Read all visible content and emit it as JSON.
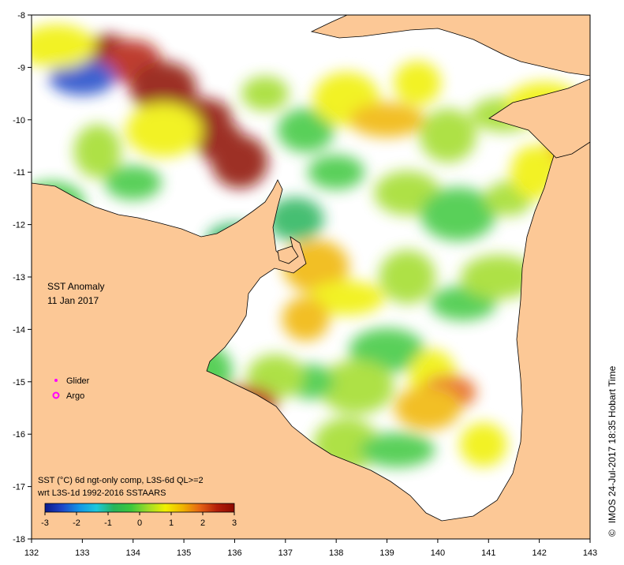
{
  "map": {
    "title_line1": "SST Anomaly",
    "title_line2": "11 Jan 2017",
    "x_ticks": [
      "132",
      "133",
      "134",
      "135",
      "136",
      "137",
      "138",
      "139",
      "140",
      "141",
      "142",
      "143"
    ],
    "y_ticks": [
      "-8",
      "-9",
      "-10",
      "-11",
      "-12",
      "-13",
      "-14",
      "-15",
      "-16",
      "-17",
      "-18"
    ],
    "lon_range": [
      132,
      143
    ],
    "lat_range": [
      -18,
      -8
    ],
    "land_color": "#fcc896",
    "ocean_color": "#ffffff"
  },
  "legend": {
    "glider_label": "Glider",
    "argo_label": "Argo",
    "marker_color": "#ff00ff"
  },
  "caption": {
    "line1": "SST (°C) 6d ngt-only comp, L3S-6d QL>=2",
    "line2": "wrt L3S-1d 1992-2016 SSTAARS"
  },
  "colorbar": {
    "ticks": [
      "-3",
      "-2",
      "-1",
      "0",
      "1",
      "2",
      "3"
    ],
    "range": [
      -3,
      3
    ],
    "colors": [
      "#0a1a8c",
      "#1e46c8",
      "#1496e6",
      "#1ec8dc",
      "#28b45a",
      "#3cc83c",
      "#a0dc28",
      "#f0f000",
      "#f0b400",
      "#e66414",
      "#b41e0a",
      "#8c0a00"
    ]
  },
  "credit": "IMOS 24-Jul-2017 18:35 Hobart Time",
  "copyright": "©",
  "sst_patches": [
    {
      "lon": 133.5,
      "lat": -8.7,
      "v": 2.5
    },
    {
      "lon": 134.0,
      "lat": -8.9,
      "v": 2.2
    },
    {
      "lon": 134.6,
      "lat": -9.4,
      "v": 2.6
    },
    {
      "lon": 135.2,
      "lat": -9.9,
      "v": 2.8
    },
    {
      "lon": 135.7,
      "lat": -10.4,
      "v": 2.9
    },
    {
      "lon": 136.1,
      "lat": -10.8,
      "v": 2.7
    },
    {
      "lon": 133.0,
      "lat": -9.2,
      "v": -2.5
    },
    {
      "lon": 132.5,
      "lat": -8.6,
      "v": 0.5
    },
    {
      "lon": 133.3,
      "lat": -10.6,
      "v": 0.2
    },
    {
      "lon": 134.0,
      "lat": -11.2,
      "v": -0.3
    },
    {
      "lon": 132.4,
      "lat": -11.6,
      "v": -0.5
    },
    {
      "lon": 134.6,
      "lat": -10.2,
      "v": 0.8
    },
    {
      "lon": 136.6,
      "lat": -9.5,
      "v": 0.3
    },
    {
      "lon": 137.4,
      "lat": -10.2,
      "v": -0.2
    },
    {
      "lon": 138.2,
      "lat": -9.6,
      "v": 0.9
    },
    {
      "lon": 139.0,
      "lat": -10.0,
      "v": 1.3
    },
    {
      "lon": 139.6,
      "lat": -9.3,
      "v": 0.6
    },
    {
      "lon": 140.2,
      "lat": -10.3,
      "v": 0.1
    },
    {
      "lon": 141.3,
      "lat": -9.9,
      "v": 0.2
    },
    {
      "lon": 142.1,
      "lat": -9.7,
      "v": 0.5
    },
    {
      "lon": 142.6,
      "lat": -10.5,
      "v": 1.0
    },
    {
      "lon": 138.0,
      "lat": -11.0,
      "v": -0.1
    },
    {
      "lon": 139.4,
      "lat": -11.4,
      "v": 0.2
    },
    {
      "lon": 140.4,
      "lat": -11.8,
      "v": -0.4
    },
    {
      "lon": 141.4,
      "lat": -11.5,
      "v": 0.4
    },
    {
      "lon": 137.2,
      "lat": -11.9,
      "v": -0.6
    },
    {
      "lon": 137.6,
      "lat": -12.8,
      "v": 1.4
    },
    {
      "lon": 138.2,
      "lat": -13.4,
      "v": 0.9
    },
    {
      "lon": 137.4,
      "lat": -13.8,
      "v": 1.1
    },
    {
      "lon": 139.4,
      "lat": -13.0,
      "v": 0.2
    },
    {
      "lon": 140.5,
      "lat": -13.5,
      "v": -0.1
    },
    {
      "lon": 139.0,
      "lat": -14.4,
      "v": -0.2
    },
    {
      "lon": 139.9,
      "lat": -14.9,
      "v": 0.7
    },
    {
      "lon": 140.2,
      "lat": -15.2,
      "v": 1.6
    },
    {
      "lon": 139.8,
      "lat": -15.5,
      "v": 1.0
    },
    {
      "lon": 138.4,
      "lat": -15.1,
      "v": 0.0
    },
    {
      "lon": 137.5,
      "lat": -15.0,
      "v": -0.3
    },
    {
      "lon": 136.8,
      "lat": -14.9,
      "v": 0.1
    },
    {
      "lon": 138.2,
      "lat": -16.2,
      "v": 0.3
    },
    {
      "lon": 139.2,
      "lat": -16.3,
      "v": -0.2
    },
    {
      "lon": 140.9,
      "lat": -16.2,
      "v": 0.5
    },
    {
      "lon": 135.4,
      "lat": -14.8,
      "v": -0.5
    },
    {
      "lon": 136.2,
      "lat": -15.4,
      "v": 2.4
    },
    {
      "lon": 141.2,
      "lat": -13.0,
      "v": 0.3
    },
    {
      "lon": 141.9,
      "lat": -11.0,
      "v": 0.6
    },
    {
      "lon": 136.0,
      "lat": -12.3,
      "v": -0.8
    }
  ]
}
